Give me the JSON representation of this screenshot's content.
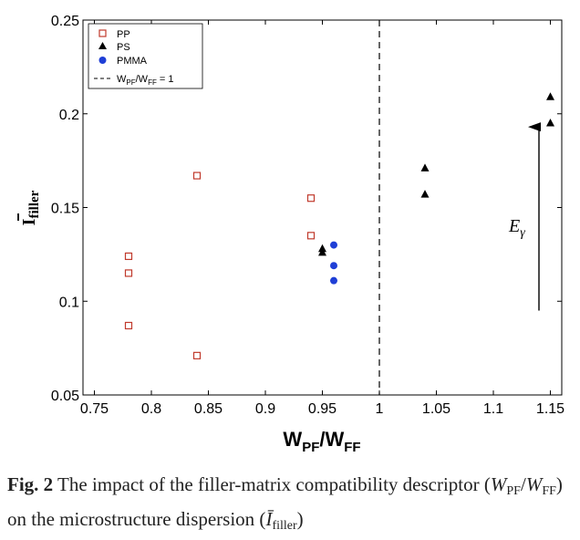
{
  "chart_data": {
    "type": "scatter",
    "xlabel_main": "W",
    "xlabel_sub1": "PF",
    "xlabel_slash": "/W",
    "xlabel_sub2": "FF",
    "ylabel_main": "I",
    "ylabel_sub": "filler",
    "xlim": [
      0.74,
      1.16
    ],
    "ylim": [
      0.05,
      0.25
    ],
    "x_ticks": [
      0.75,
      0.8,
      0.85,
      0.9,
      0.95,
      1,
      1.05,
      1.1,
      1.15
    ],
    "x_tick_labels": [
      "0.75",
      "0.8",
      "0.85",
      "0.9",
      "0.95",
      "1",
      "1.05",
      "1.1",
      "1.15"
    ],
    "y_ticks": [
      0.05,
      0.1,
      0.15,
      0.2,
      0.25
    ],
    "y_tick_labels": [
      "0.05",
      "0.1",
      "0.15",
      "0.2",
      "0.25"
    ],
    "grid": false,
    "legend_position": "top-left",
    "series": [
      {
        "name": "PP",
        "marker": "square-open",
        "color": "#c0392b",
        "points": [
          [
            0.78,
            0.124
          ],
          [
            0.78,
            0.115
          ],
          [
            0.78,
            0.087
          ],
          [
            0.84,
            0.167
          ],
          [
            0.84,
            0.071
          ],
          [
            0.94,
            0.155
          ],
          [
            0.94,
            0.135
          ]
        ]
      },
      {
        "name": "PS",
        "marker": "triangle-filled",
        "color": "#000000",
        "points": [
          [
            0.95,
            0.128
          ],
          [
            0.95,
            0.126
          ],
          [
            1.04,
            0.171
          ],
          [
            1.04,
            0.157
          ],
          [
            1.15,
            0.209
          ],
          [
            1.15,
            0.195
          ]
        ]
      },
      {
        "name": "PMMA",
        "marker": "circle-filled",
        "color": "#1f3fd6",
        "points": [
          [
            0.96,
            0.13
          ],
          [
            0.96,
            0.119
          ],
          [
            0.96,
            0.111
          ]
        ]
      }
    ],
    "reference_line": {
      "x": 1,
      "style": "dashed",
      "legend_main": "W",
      "legend_sub1": "PF",
      "legend_slash": "/W",
      "legend_sub2": "FF",
      "legend_tail": " = 1"
    },
    "annotation": {
      "text_main": "E",
      "text_sub": "γ",
      "arrow_x": 1.14,
      "arrow_from_y": 0.095,
      "arrow_to_y": 0.193,
      "label_x": 1.128,
      "label_y": 0.14
    }
  },
  "caption": {
    "label": "Fig. 2",
    "text_a": " The impact of the filler-matrix compatibility descriptor (",
    "sym_w": "W",
    "sub_pf": "PF",
    "slash": "/",
    "sym_w2": "W",
    "sub_ff": "FF",
    "text_b": ") on the microstructure dispersion (",
    "sym_i": "Ī",
    "sub_filler": "filler",
    "text_c": ")"
  }
}
